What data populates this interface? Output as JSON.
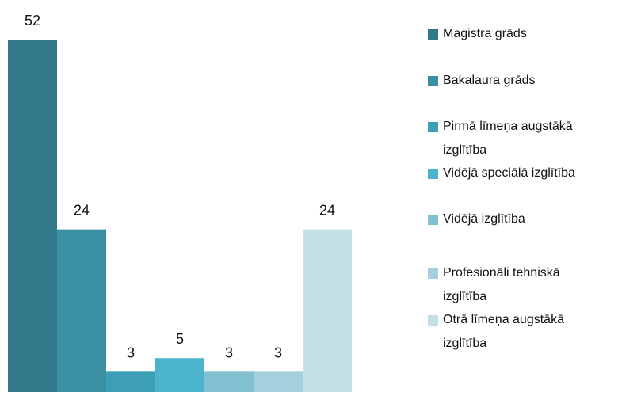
{
  "chart_data": {
    "type": "bar",
    "series": [
      {
        "name": "Maģistra grāds",
        "color": "#31788a",
        "values": [
          52
        ]
      },
      {
        "name": "Bakalaura grāds",
        "color": "#3a8fa3",
        "values": [
          24
        ]
      },
      {
        "name": "Pirmā līmeņa augstākā izglītība",
        "color": "#3c9fb5",
        "values": [
          3
        ]
      },
      {
        "name": "Vidējā speciālā izglītība",
        "color": "#4bb3cb",
        "values": [
          5
        ]
      },
      {
        "name": "Vidējā izglītība",
        "color": "#80c0d0",
        "values": [
          3
        ]
      },
      {
        "name": "Profesionāli tehniskā izglītība",
        "color": "#a4cfdc",
        "values": [
          3
        ]
      },
      {
        "name": "Otrā līmeņa augstākā izglītība",
        "color": "#c5dfe7",
        "values": [
          24
        ]
      }
    ]
  }
}
